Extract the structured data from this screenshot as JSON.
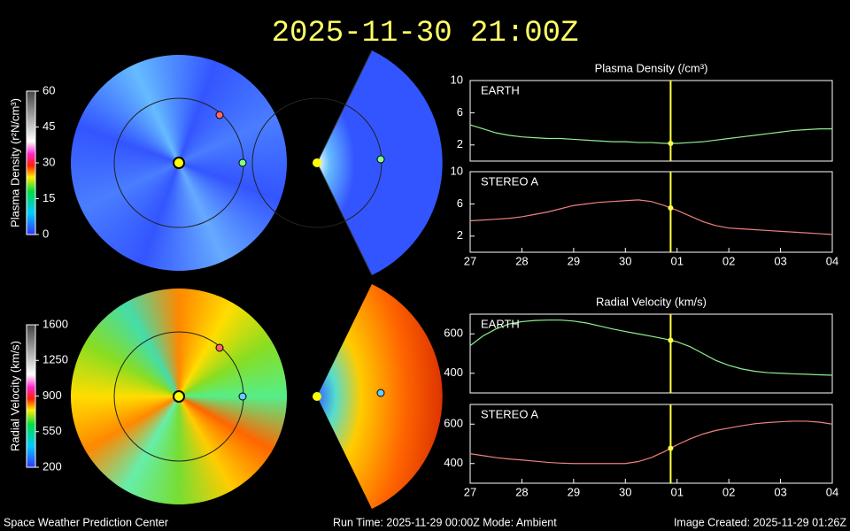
{
  "title": "2025-11-30 21:00Z",
  "footer": {
    "left": "Space Weather Prediction Center",
    "center": "Run Time: 2025-11-29 00:00Z  Mode: Ambient",
    "right": "Image Created: 2025-11-29 01:26Z"
  },
  "colorbars": [
    {
      "label": "Plasma Density (r²N/cm³)",
      "ticks": [
        0,
        15,
        30,
        45,
        60
      ]
    },
    {
      "label": "Radial Velocity (km/s)",
      "ticks": [
        200,
        550,
        900,
        1250,
        1600
      ]
    }
  ],
  "chart_data": [
    {
      "type": "line",
      "title": "Plasma Density (/cm³)",
      "xlim": [
        0,
        7
      ],
      "ylim": [
        0,
        10
      ],
      "yticks": [
        2,
        6,
        10
      ],
      "time_marker": 3.875,
      "x": [
        0,
        0.25,
        0.5,
        0.75,
        1,
        1.25,
        1.5,
        1.75,
        2,
        2.25,
        2.5,
        2.75,
        3,
        3.25,
        3.5,
        3.75,
        4,
        4.25,
        4.5,
        4.75,
        5,
        5.25,
        5.5,
        5.75,
        6,
        6.25,
        6.5,
        6.75,
        7
      ],
      "series": [
        {
          "name": "EARTH",
          "color": "#90ee90",
          "values": [
            4.5,
            4.0,
            3.5,
            3.2,
            3.0,
            2.9,
            2.8,
            2.8,
            2.7,
            2.6,
            2.5,
            2.4,
            2.4,
            2.3,
            2.3,
            2.2,
            2.2,
            2.3,
            2.4,
            2.6,
            2.8,
            3.0,
            3.2,
            3.4,
            3.6,
            3.8,
            3.9,
            4.0,
            4.0
          ]
        }
      ]
    },
    {
      "type": "line",
      "xlim": [
        0,
        7
      ],
      "ylim": [
        0,
        10
      ],
      "yticks": [
        2,
        6,
        10
      ],
      "time_marker": 3.875,
      "xticks": [
        {
          "value": 0,
          "label": "27"
        },
        {
          "value": 1,
          "label": "28"
        },
        {
          "value": 2,
          "label": "29"
        },
        {
          "value": 3,
          "label": "30"
        },
        {
          "value": 4,
          "label": "01"
        },
        {
          "value": 5,
          "label": "02"
        },
        {
          "value": 6,
          "label": "03"
        },
        {
          "value": 7,
          "label": "04"
        }
      ],
      "x": [
        0,
        0.25,
        0.5,
        0.75,
        1,
        1.25,
        1.5,
        1.75,
        2,
        2.25,
        2.5,
        2.75,
        3,
        3.25,
        3.5,
        3.75,
        4,
        4.25,
        4.5,
        4.75,
        5,
        5.25,
        5.5,
        5.75,
        6,
        6.25,
        6.5,
        6.75,
        7
      ],
      "series": [
        {
          "name": "STEREO A",
          "color": "#f08080",
          "values": [
            3.9,
            4.0,
            4.1,
            4.2,
            4.4,
            4.7,
            5.0,
            5.4,
            5.8,
            6.0,
            6.2,
            6.3,
            6.4,
            6.5,
            6.3,
            5.8,
            5.2,
            4.5,
            3.8,
            3.3,
            3.0,
            2.9,
            2.8,
            2.7,
            2.6,
            2.5,
            2.4,
            2.3,
            2.2
          ]
        }
      ]
    },
    {
      "type": "line",
      "title": "Radial Velocity (km/s)",
      "xlim": [
        0,
        7
      ],
      "ylim": [
        300,
        700
      ],
      "yticks": [
        400,
        600
      ],
      "time_marker": 3.875,
      "x": [
        0,
        0.25,
        0.5,
        0.75,
        1,
        1.25,
        1.5,
        1.75,
        2,
        2.25,
        2.5,
        2.75,
        3,
        3.25,
        3.5,
        3.75,
        4,
        4.25,
        4.5,
        4.75,
        5,
        5.25,
        5.5,
        5.75,
        6,
        6.25,
        6.5,
        6.75,
        7
      ],
      "series": [
        {
          "name": "EARTH",
          "color": "#90ee90",
          "values": [
            540,
            590,
            625,
            650,
            662,
            668,
            670,
            670,
            665,
            655,
            640,
            625,
            612,
            600,
            588,
            575,
            560,
            535,
            500,
            465,
            440,
            422,
            410,
            403,
            400,
            397,
            395,
            392,
            390
          ]
        }
      ]
    },
    {
      "type": "line",
      "xlim": [
        0,
        7
      ],
      "ylim": [
        300,
        700
      ],
      "yticks": [
        400,
        600
      ],
      "time_marker": 3.875,
      "xticks": [
        {
          "value": 0,
          "label": "27"
        },
        {
          "value": 1,
          "label": "28"
        },
        {
          "value": 2,
          "label": "29"
        },
        {
          "value": 3,
          "label": "30"
        },
        {
          "value": 4,
          "label": "01"
        },
        {
          "value": 5,
          "label": "02"
        },
        {
          "value": 6,
          "label": "03"
        },
        {
          "value": 7,
          "label": "04"
        }
      ],
      "x": [
        0,
        0.25,
        0.5,
        0.75,
        1,
        1.25,
        1.5,
        1.75,
        2,
        2.25,
        2.5,
        2.75,
        3,
        3.25,
        3.5,
        3.75,
        4,
        4.25,
        4.5,
        4.75,
        5,
        5.25,
        5.5,
        5.75,
        6,
        6.25,
        6.5,
        6.75,
        7
      ],
      "series": [
        {
          "name": "STEREO A",
          "color": "#f08080",
          "values": [
            450,
            440,
            430,
            423,
            418,
            412,
            406,
            402,
            400,
            400,
            400,
            400,
            400,
            410,
            430,
            460,
            495,
            525,
            550,
            568,
            580,
            592,
            602,
            608,
            612,
            615,
            615,
            610,
            600
          ]
        }
      ]
    }
  ]
}
